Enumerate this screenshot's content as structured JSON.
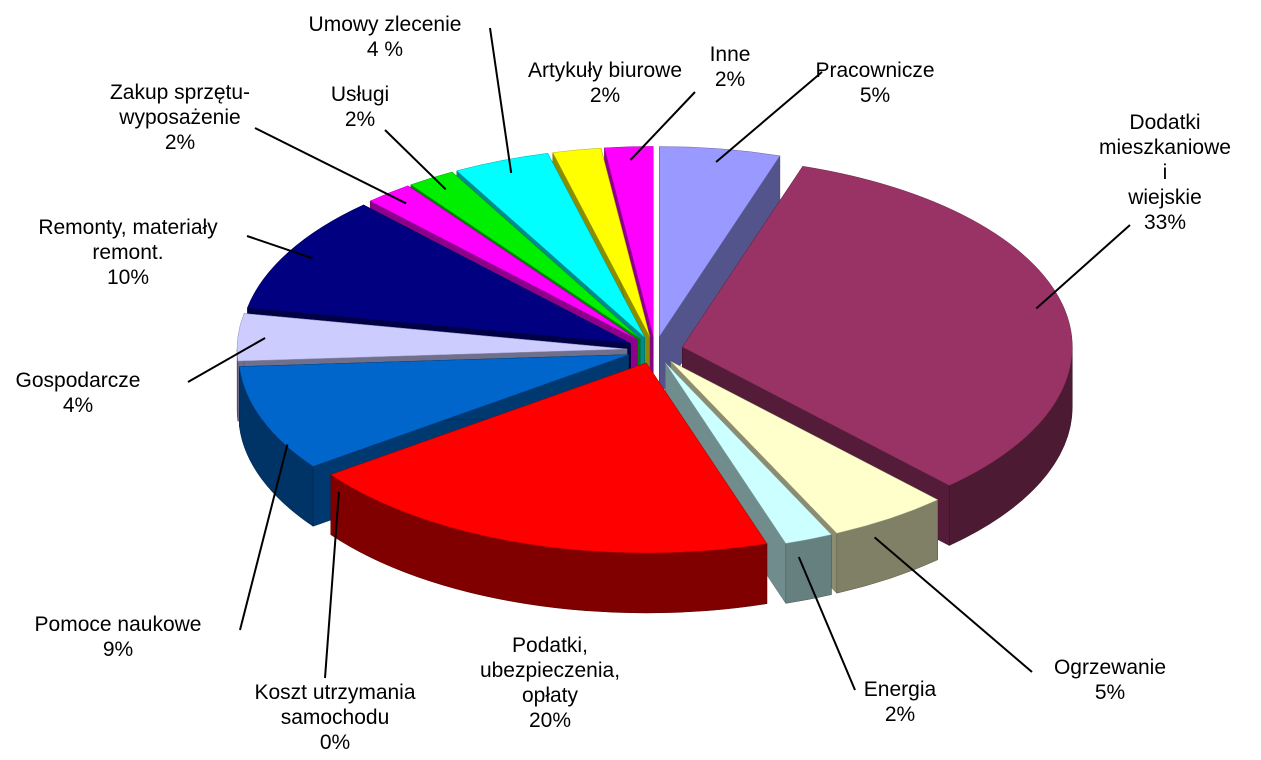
{
  "chart_data": {
    "type": "pie3d",
    "categories": [
      "Pracownicze",
      "Dodatki\nmieszkaniowe i\nwiejskie",
      "Ogrzewanie",
      "Energia",
      "Podatki,\nubezpieczenia,\nopłaty",
      "Koszt utrzymania\nsamochodu",
      "Pomoce naukowe",
      "Gospodarcze",
      "Remonty, materiały\nremont.",
      "Zakup sprzętu-\nwyposażenie",
      "Usługi",
      "Umowy zlecenie",
      "Artykuły biurowe",
      "Inne"
    ],
    "values": [
      5,
      33,
      5,
      2,
      20,
      0,
      9,
      4,
      10,
      2,
      2,
      4,
      2,
      2
    ],
    "value_labels": [
      "5%",
      "33%",
      "5%",
      "2%",
      "20%",
      "0%",
      "9%",
      "4%",
      "10%",
      "2%",
      "2%",
      "4 %",
      "2%",
      "2%"
    ],
    "colors": [
      "#9999ff",
      "#993366",
      "#ffffcc",
      "#ccffff",
      "#ff0000",
      "#804040",
      "#0066cc",
      "#ccccff",
      "#000080",
      "#ff00ff",
      "#00ee00",
      "#00ffff",
      "#ffff00",
      "#ff00ff"
    ]
  }
}
